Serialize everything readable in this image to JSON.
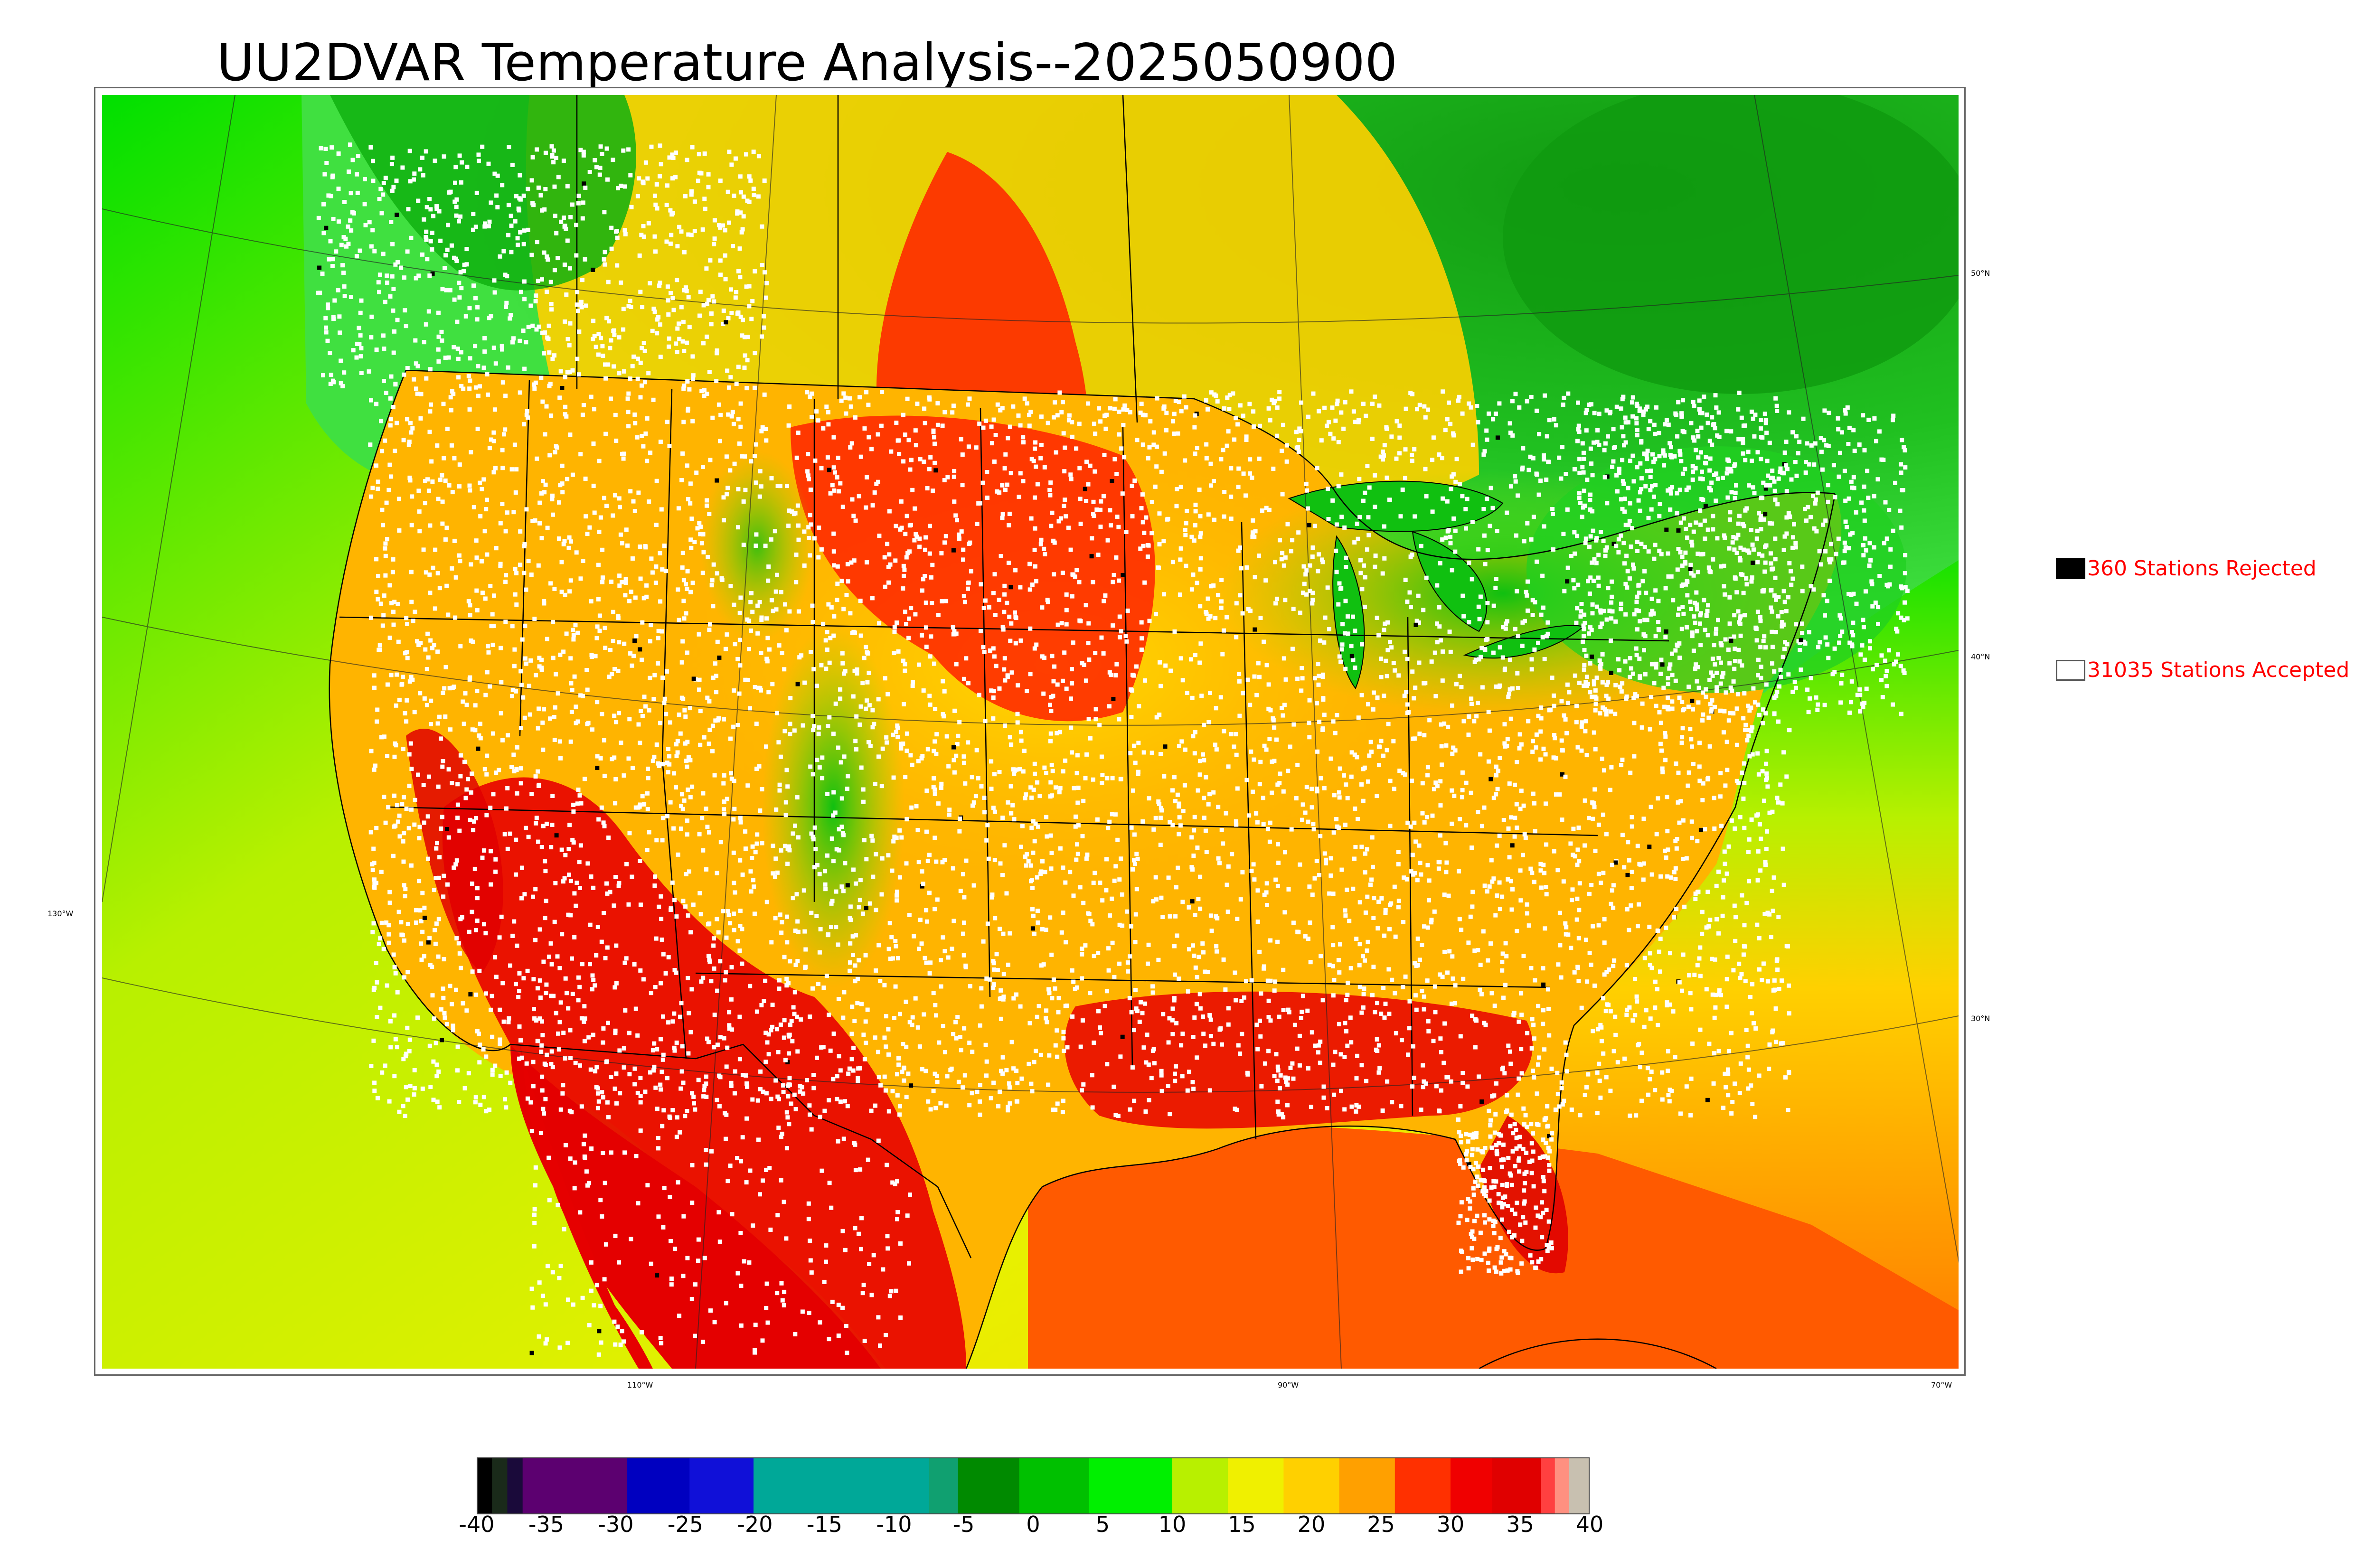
{
  "title": "UU2DVAR Temperature Analysis--2025050900",
  "legend": {
    "rejected": {
      "label": "360 Stations Rejected",
      "swatch": "#000000"
    },
    "accepted": {
      "label": "31035 Stations Accepted",
      "swatch": "#ffffff"
    }
  },
  "graticule": {
    "lon_labels": [
      "130°W",
      "110°W",
      "90°W",
      "70°W"
    ],
    "lat_labels": [
      "50°N",
      "40°N",
      "30°N"
    ]
  },
  "colorbar": {
    "ticks": [
      "-40",
      "-35",
      "-30",
      "-25",
      "-20",
      "-15",
      "-10",
      "-5",
      "0",
      "5",
      "10",
      "15",
      "20",
      "25",
      "30",
      "35",
      "40"
    ],
    "min": -40,
    "max": 40,
    "segments": [
      {
        "from": -40,
        "to": -38.9,
        "color": "#000000"
      },
      {
        "from": -38.9,
        "to": -37.8,
        "color": "#1a2a1a"
      },
      {
        "from": -37.8,
        "to": -36.7,
        "color": "#1a0a3a"
      },
      {
        "from": -36.7,
        "to": -32,
        "color": "#5c0070"
      },
      {
        "from": -32,
        "to": -29.2,
        "color": "#5c0070"
      },
      {
        "from": -29.2,
        "to": -24.7,
        "color": "#0000c0"
      },
      {
        "from": -24.7,
        "to": -20.1,
        "color": "#1010d8"
      },
      {
        "from": -20.1,
        "to": -7.5,
        "color": "#00a898"
      },
      {
        "from": -7.5,
        "to": -5.4,
        "color": "#10a070"
      },
      {
        "from": -5.4,
        "to": -1,
        "color": "#008a00"
      },
      {
        "from": -1,
        "to": 4,
        "color": "#00c000"
      },
      {
        "from": 4,
        "to": 10,
        "color": "#00f000"
      },
      {
        "from": 10,
        "to": 14,
        "color": "#b8f000"
      },
      {
        "from": 14,
        "to": 18,
        "color": "#f0f000"
      },
      {
        "from": 18,
        "to": 22,
        "color": "#ffd000"
      },
      {
        "from": 22,
        "to": 26,
        "color": "#ffa000"
      },
      {
        "from": 26,
        "to": 30,
        "color": "#ff3000"
      },
      {
        "from": 30,
        "to": 33,
        "color": "#f00000"
      },
      {
        "from": 33,
        "to": 36.5,
        "color": "#e00000"
      },
      {
        "from": 36.5,
        "to": 37.5,
        "color": "#ff4040"
      },
      {
        "from": 37.5,
        "to": 38.5,
        "color": "#ff9080"
      },
      {
        "from": 38.5,
        "to": 40,
        "color": "#c8c0b0"
      }
    ]
  },
  "colors": {
    "ocean_west": "#d8f000",
    "ocean_east": "#ffb000",
    "gulf": "#ff5a00",
    "canada_north": "#20c020",
    "boundary": "#000000",
    "station_accepted": "#ffffff",
    "station_rejected": "#000000",
    "legend_text": "#ff0000"
  }
}
